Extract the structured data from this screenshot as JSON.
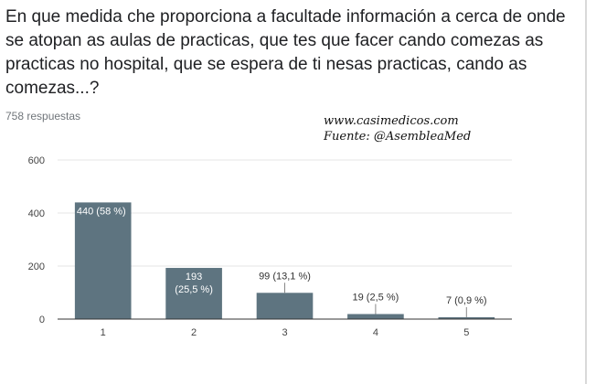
{
  "question": "En que medida che proporciona a facultade información a cerca de onde se atopan as aulas de practicas, que tes que facer cando comezas as practicas no hospital, que se espera de ti nesas practicas, cando as comezas...?",
  "responses_count": "758 respuestas",
  "watermark": {
    "line1": "www.casimedicos.com",
    "line2": "Fuente: @AsembleaMed"
  },
  "colors": {
    "bar": "#5e7480",
    "label_inside": "#ffffff",
    "label_outside": "#333333",
    "grid": "#e6e6e6",
    "axis": "#333333"
  },
  "chart_data": {
    "type": "bar",
    "categories": [
      "1",
      "2",
      "3",
      "4",
      "5"
    ],
    "values": [
      440,
      193,
      99,
      19,
      7
    ],
    "data_labels": [
      [
        "440 (58 %)"
      ],
      [
        "193",
        "(25,5 %)"
      ],
      [
        "99 (13,1 %)"
      ],
      [
        "19 (2,5 %)"
      ],
      [
        "7 (0,9 %)"
      ]
    ],
    "yticks": [
      "0",
      "200",
      "400",
      "600"
    ],
    "ylim": [
      0,
      600
    ],
    "grid": true
  }
}
